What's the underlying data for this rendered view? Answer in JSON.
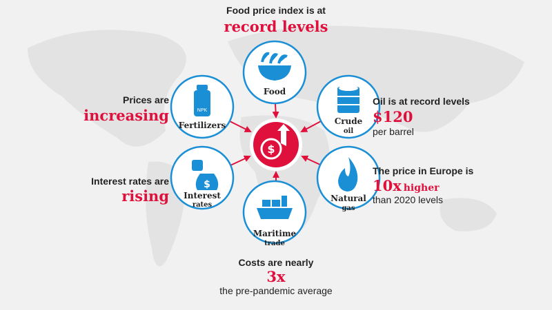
{
  "center": {
    "icon": "dollar-up"
  },
  "nodes": [
    {
      "lines": [
        "Food"
      ]
    },
    {
      "lines": [
        "Fertilizers"
      ],
      "icon_text": "NPK"
    },
    {
      "lines": [
        "Crude",
        "oil"
      ]
    },
    {
      "lines": [
        "Interest",
        "rates"
      ]
    },
    {
      "lines": [
        "Natural",
        "gas"
      ]
    },
    {
      "lines": [
        "Maritime",
        "trade"
      ]
    }
  ],
  "callouts": [
    {
      "intro": "Food price index is at",
      "highlight": "record levels"
    },
    {
      "intro": "Prices are",
      "highlight": "increasing"
    },
    {
      "intro": "Oil is at record levels",
      "highlight": "$120",
      "outro": "per barrel"
    },
    {
      "intro": "Interest rates are",
      "highlight": "rising"
    },
    {
      "intro": "The price in Europe is",
      "highlight": "10x",
      "highlight_suffix": "higher",
      "outro": "than 2020 levels"
    },
    {
      "intro": "Costs are nearly",
      "highlight": "3x",
      "outro": "the pre-pandemic average"
    }
  ]
}
